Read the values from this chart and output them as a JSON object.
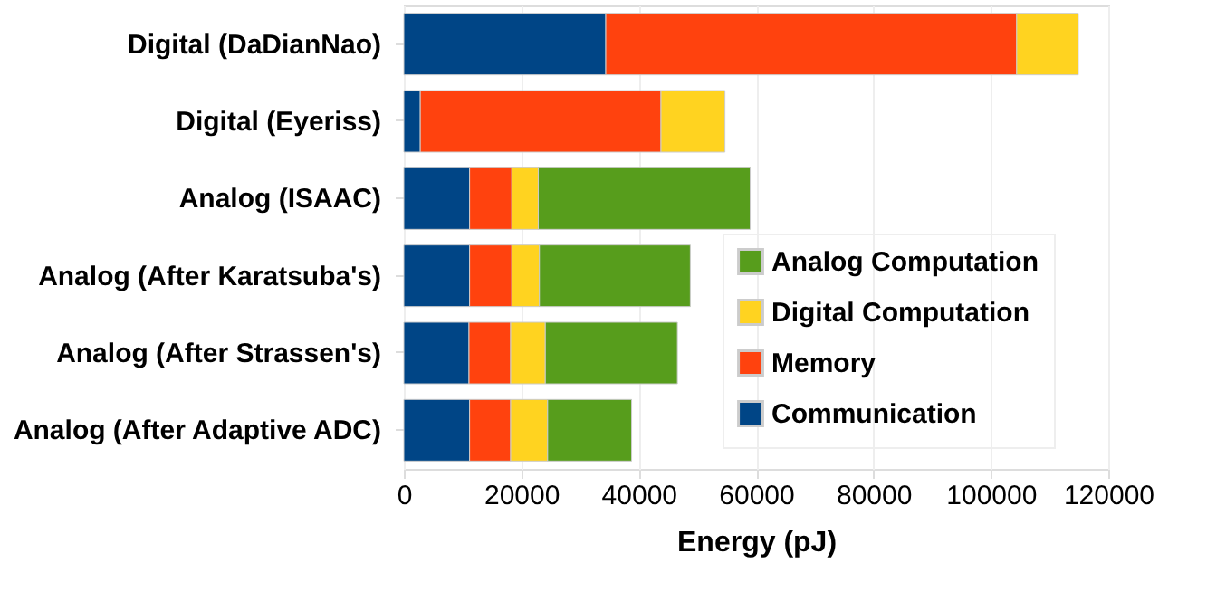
{
  "chart_data": {
    "type": "bar",
    "orientation": "horizontal",
    "stacked": true,
    "xlabel": "Energy (pJ)",
    "categories": [
      "Digital (DaDianNao)",
      "Digital (Eyeriss)",
      "Analog (ISAAC)",
      "Analog (After Karatsuba's)",
      "Analog (After Strassen's)",
      "Analog (After Adaptive ADC)"
    ],
    "series": [
      {
        "name": "Communication",
        "color": "#004586",
        "values": [
          34400,
          2800,
          11200,
          11200,
          11100,
          11200
        ]
      },
      {
        "name": "Memory",
        "color": "#ff420e",
        "values": [
          70000,
          41000,
          7200,
          7200,
          7100,
          7000
        ]
      },
      {
        "name": "Digital Computation",
        "color": "#ffd320",
        "values": [
          10500,
          10900,
          4500,
          4700,
          5900,
          6300
        ]
      },
      {
        "name": "Analog Computation",
        "color": "#579d1c",
        "values": [
          null,
          null,
          36100,
          25700,
          22500,
          14300
        ]
      }
    ],
    "xlim": [
      0,
      120000
    ],
    "xticks": [
      0,
      20000,
      40000,
      60000,
      80000,
      100000,
      120000
    ],
    "grid": "x",
    "legend": "bottom right"
  }
}
